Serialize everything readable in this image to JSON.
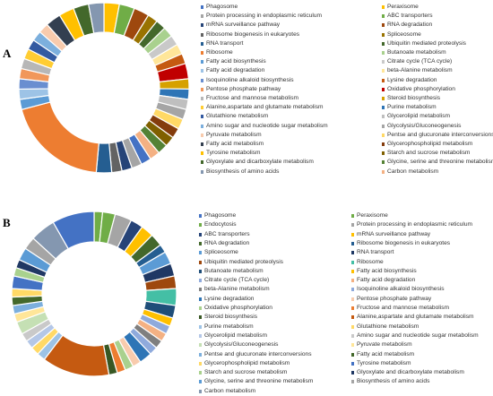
{
  "chart_data": [
    {
      "type": "pie",
      "panel_label": "A",
      "legend_placement": "right",
      "legend_columns": 2,
      "categories": [
        "Phagosome",
        "Protein processing in endoplasmic reticulum",
        "mRNA surveillance pathway",
        "Ribosome biogenesis in eukaryotes",
        "RNA transport",
        "Ribosome",
        "Fatty acid biosynthesis",
        "Fatty acid degradation",
        "Isoquinoline alkaloid biosynthesis",
        "Pentose phosphate pathway",
        "Fructose and mannose metabolism",
        "Alanine,aspartate and glutamate metabolism",
        "Glutathione metabolism",
        "Amino sugar and nucleotide sugar metabolism",
        "Pyruvate metabolism",
        "Fatty acid metabolism",
        "Tyrosine metabolism",
        "Glyoxylate and dicarboxylate metabolism",
        "Biosynthesis of amino acids",
        "Peraxisome",
        "ABC transporters",
        "RNA degradation",
        "Spliceosome",
        "Ubiquitin mediated proteolysis",
        "Butanoate metabolism",
        "Citrate cycle (TCA cycle)",
        "beta-Alanine metabolism",
        "Lysine degradation",
        "Oxidative phosphorylation",
        "Steroid biosynthesis",
        "Purine metabolism",
        "Glycerolipid metabolism",
        "Glycolysis/Gluconeogenesis",
        "Pentse and glucuronate interconversions",
        "Glycerophospholipid metabolism",
        "Starch and sucrose metabolism",
        "Glycine, serine and threonine metabolism",
        "Carbon metabolism"
      ],
      "colors": [
        "#4472c4",
        "#a5a5a5",
        "#264478",
        "#636363",
        "#255e91",
        "#ed7d31",
        "#5b9bd5",
        "#9dc3e6",
        "#698ed0",
        "#f1975a",
        "#b7b7b7",
        "#ffcd33",
        "#335aa1",
        "#7cafdd",
        "#f8cbad",
        "#333f50",
        "#ffc000",
        "#43682b",
        "#8497b0",
        "#ffc000",
        "#70ad47",
        "#9e480e",
        "#997300",
        "#43682b",
        "#a9d18e",
        "#c9c9c9",
        "#ffe699",
        "#c55a11",
        "#c00000",
        "#d6a100",
        "#2e75b6",
        "#bfbfbf",
        "#a5a5a5",
        "#ffd966",
        "#843c0c",
        "#806000",
        "#548235",
        "#f4b183"
      ],
      "order": [
        "Peraxisome",
        "ABC transporters",
        "RNA degradation",
        "Spliceosome",
        "Ubiquitin mediated proteolysis",
        "Butanoate metabolism",
        "Citrate cycle (TCA cycle)",
        "beta-Alanine metabolism",
        "Lysine degradation",
        "Oxidative phosphorylation",
        "Steroid biosynthesis",
        "Purine metabolism",
        "Glycerolipid metabolism",
        "Glycolysis/Gluconeogenesis",
        "Pentse and glucuronate interconversions",
        "Glycerophospholipid metabolism",
        "Starch and sucrose metabolism",
        "Glycine, serine and threonine metabolism",
        "Carbon metabolism",
        "Phagosome",
        "Protein processing in endoplasmic reticulum",
        "mRNA surveillance pathway",
        "Ribosome biogenesis in eukaryotes",
        "RNA transport",
        "Ribosome",
        "Fatty acid biosynthesis",
        "Fatty acid degradation",
        "Isoquinoline alkaloid biosynthesis",
        "Pentose phosphate pathway",
        "Fructose and mannose metabolism",
        "Alanine,aspartate and glutamate metabolism",
        "Glutathione metabolism",
        "Amino sugar and nucleotide sugar metabolism",
        "Pyruvate metabolism",
        "Fatty acid metabolism",
        "Tyrosine metabolism",
        "Glyoxylate and dicarboxylate metabolism",
        "Biosynthesis of amino acids"
      ],
      "values": [
        3,
        3,
        3,
        2,
        2,
        2,
        2,
        2,
        2,
        3,
        2,
        2,
        2,
        2,
        2,
        2,
        2,
        2,
        2,
        2,
        2,
        2,
        2,
        3,
        20,
        2,
        2,
        2,
        2,
        2,
        2,
        2,
        2,
        2,
        3,
        3,
        3,
        3
      ]
    },
    {
      "type": "pie",
      "panel_label": "B",
      "legend_placement": "right",
      "legend_columns": 2,
      "categories": [
        "Phagosome",
        "Endocytosis",
        "ABC transporters",
        "RNA degradation",
        "Spliceosome",
        "Ubiquitin mediated proteolysis",
        "Butanoate metabolism",
        "Citrate cycle (TCA cycle)",
        "beta-Alanine metabolism",
        "Lysine degradation",
        "Oxidative phosphorylation",
        "Steroid biosynthesis",
        "Purine metabolism",
        "Glycerolipid metabolism",
        "Glycolysis/Gluconeogenesis",
        "Pentse and glucuronate interconversions",
        "Glycerophospholipid metabolism",
        "Starch and sucrose metabolism",
        "Glycine, serine and threonine metabolism",
        "Carbon metabolism",
        "Peraxisome",
        "Protein processing in endoplasmic reticulum",
        "mRNA surveillance pathway",
        "Ribosome biogenesis in eukaryotes",
        "RNA transport",
        "Ribosome",
        "Fatty acid biosynthesis",
        "Fatty acid degradation",
        "Isoquinoline alkaloid biosynthesis",
        "Pentose phosphate pathway",
        "Fructose and mannose metabolism",
        "Alanine,aspartate and glutamate metabolism",
        "Glutathione metabolism",
        "Amino sugar and nucleotide sugar metabolism",
        "Pyruvate metabolism",
        "Fatty acid metabolism",
        "Tyrosine metabolism",
        "Glyoxylate and dicarboxylate metabolism",
        "Biosynthesis of amino acids"
      ],
      "colors": [
        "#4472c4",
        "#70ad47",
        "#264478",
        "#43682b",
        "#5b9bd5",
        "#9e480e",
        "#1f4e79",
        "#8faadc",
        "#7f7f7f",
        "#2e75b6",
        "#a9d18e",
        "#385723",
        "#9dc3e6",
        "#b4c7e7",
        "#c5e0b4",
        "#7cafdd",
        "#ffd966",
        "#a9d18e",
        "#5b9bd5",
        "#8497b0",
        "#70ad47",
        "#a5a5a5",
        "#ffc000",
        "#255e91",
        "#1f3864",
        "#44bfa5",
        "#ffc000",
        "#f4b183",
        "#8faadc",
        "#f8cbad",
        "#ed7d31",
        "#c55a11",
        "#ffd966",
        "#c9c9c9",
        "#ffe699",
        "#43682b",
        "#4472c4",
        "#203864",
        "#a5a5a5"
      ],
      "order": [
        "Peraxisome",
        "Endocytosis",
        "Protein processing in endoplasmic reticulum",
        "ABC transporters",
        "mRNA surveillance pathway",
        "RNA degradation",
        "Ribosome biogenesis in eukaryotes",
        "Spliceosome",
        "RNA transport",
        "Ubiquitin mediated proteolysis",
        "Ribosome",
        "Butanoate metabolism",
        "Fatty acid biosynthesis",
        "Citrate cycle (TCA cycle)",
        "Fatty acid degradation",
        "beta-Alanine metabolism",
        "Isoquinoline alkaloid biosynthesis",
        "Lysine degradation",
        "Pentose phosphate pathway",
        "Oxidative phosphorylation",
        "Fructose and mannose metabolism",
        "Steroid biosynthesis",
        "Alanine,aspartate and glutamate metabolism",
        "Purine metabolism",
        "Glutathione metabolism",
        "Glycerolipid metabolism",
        "Amino sugar and nucleotide sugar metabolism",
        "Glycolysis/Gluconeogenesis",
        "Pyruvate metabolism",
        "Pentse and glucuronate interconversions",
        "Fatty acid metabolism",
        "Glycerophospholipid metabolism",
        "Tyrosine metabolism",
        "Starch and sucrose metabolism",
        "Glyoxylate and dicarboxylate metabolism",
        "Glycine, serine and threonine metabolism",
        "Biosynthesis of amino acids",
        "Carbon metabolism",
        "Phagosome"
      ],
      "values": [
        2,
        3,
        4,
        3,
        3,
        3,
        2,
        3,
        3,
        3,
        4,
        3,
        2,
        2,
        2,
        2,
        2,
        3,
        2,
        2,
        2,
        2,
        16,
        2,
        2,
        2,
        2,
        3,
        2,
        2,
        2,
        2,
        3,
        2,
        2,
        3,
        3,
        6,
        10
      ]
    }
  ]
}
